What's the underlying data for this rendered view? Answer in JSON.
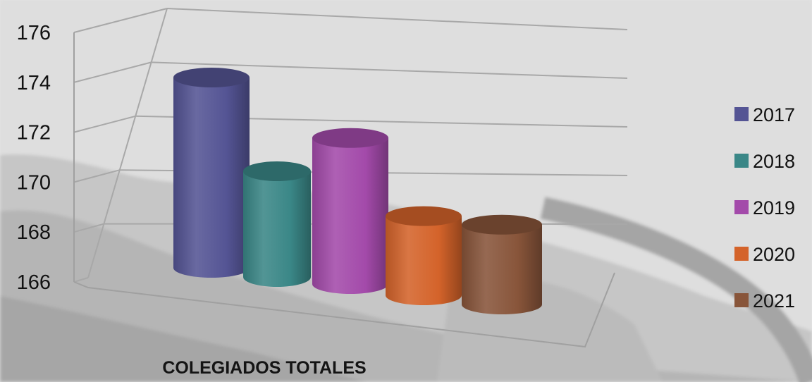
{
  "chart_data": {
    "type": "bar",
    "style": "3d-cylinder",
    "categories": [
      "COLEGIADOS TOTALES"
    ],
    "series": [
      {
        "name": "2017",
        "values": [
          175
        ],
        "color": "#545494"
      },
      {
        "name": "2018",
        "values": [
          171
        ],
        "color": "#3a8787"
      },
      {
        "name": "2019",
        "values": [
          172.6
        ],
        "color": "#a34aaa"
      },
      {
        "name": "2020",
        "values": [
          169.5
        ],
        "color": "#d4632a"
      },
      {
        "name": "2021",
        "values": [
          169.4
        ],
        "color": "#88553a"
      }
    ],
    "y_ticks": [
      "166",
      "168",
      "170",
      "172",
      "174",
      "176"
    ],
    "ylim": [
      166,
      176
    ],
    "grid": true,
    "legend_position": "right"
  }
}
